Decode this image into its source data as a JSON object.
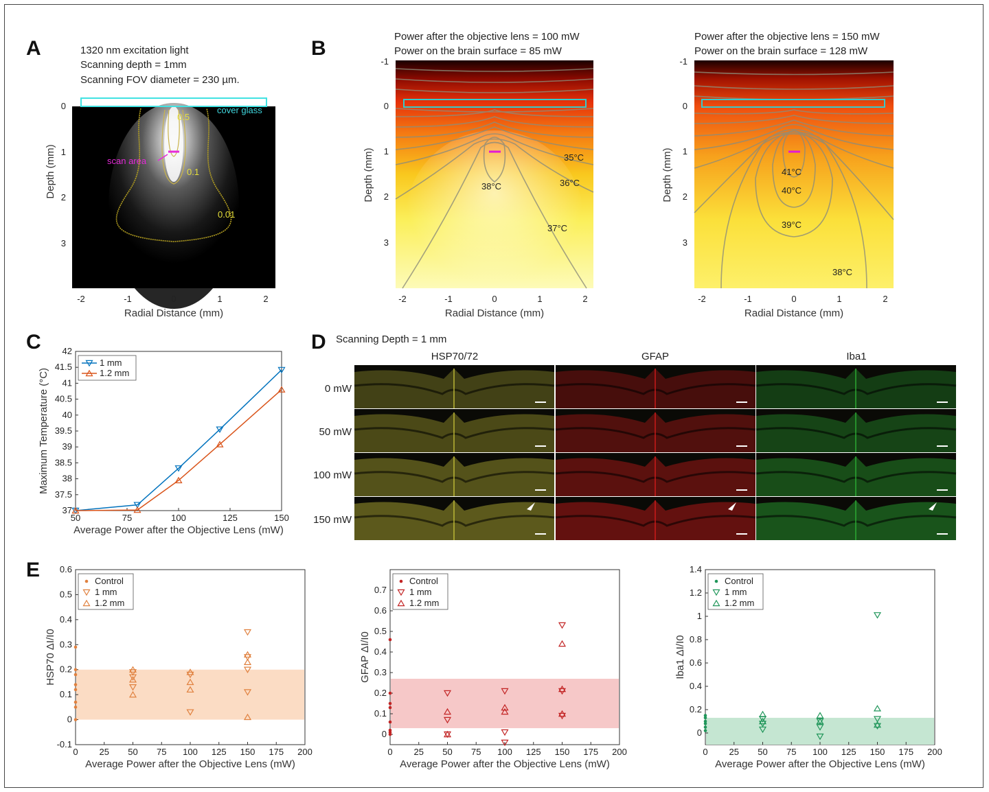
{
  "panel_labels": {
    "a": "A",
    "b": "B",
    "c": "C",
    "d": "D",
    "e": "E"
  },
  "panel_a": {
    "lines": [
      "1320 nm excitation light",
      "Scanning depth = 1mm",
      "Scanning FOV diameter = 230 µm."
    ],
    "cover_glass": "cover glass",
    "scan_area": "scan area",
    "contours": [
      "0.5",
      "0.1",
      "0.01"
    ],
    "xlabel": "Radial Distance (mm)",
    "ylabel": "Depth (mm)",
    "xticks": [
      "-2",
      "-1",
      "0",
      "1",
      "2"
    ],
    "yticks": [
      "0",
      "1",
      "2",
      "3"
    ]
  },
  "panel_b": {
    "left": {
      "line1": "Power after the objective lens = 100 mW",
      "line2": "Power on the brain surface = 85 mW",
      "labels": [
        "35°C",
        "36°C",
        "37°C",
        "38°C"
      ]
    },
    "right": {
      "line1": "Power after the objective lens = 150 mW",
      "line2": "Power on the brain surface = 128 mW",
      "labels": [
        "41°C",
        "40°C",
        "39°C",
        "38°C"
      ]
    },
    "xlabel": "Radial Distance (mm)",
    "ylabel": "Depth (mm)",
    "xticks": [
      "-2",
      "-1",
      "0",
      "1",
      "2"
    ],
    "yticks": [
      "-1",
      "0",
      "1",
      "2",
      "3"
    ]
  },
  "panel_d": {
    "title": "Scanning Depth = 1 mm",
    "columns": [
      "HSP70/72",
      "GFAP",
      "Iba1"
    ],
    "rows": [
      "0 mW",
      "50 mW",
      "100 mW",
      "150 mW"
    ],
    "colors": [
      "#c8c23a",
      "#d81c1c",
      "#2fb536"
    ]
  },
  "chart_data": [
    {
      "type": "line",
      "xlabel": "Average Power after the Objective Lens (mW)",
      "ylabel": "Maximum Temperature (°C)",
      "xlim": [
        50,
        150
      ],
      "ylim": [
        37,
        42
      ],
      "xticks": [
        50,
        75,
        100,
        125,
        150
      ],
      "yticks": [
        37,
        37.5,
        38,
        38.5,
        39,
        39.5,
        40,
        40.5,
        41,
        41.5,
        42
      ],
      "legend": "top-left",
      "series": [
        {
          "name": "1 mm",
          "color": "#0072bd",
          "marker": "triangle-down",
          "x": [
            50,
            80,
            100,
            120,
            150
          ],
          "y": [
            37.0,
            37.18,
            38.33,
            39.55,
            41.42
          ]
        },
        {
          "name": "1.2 mm",
          "color": "#d95319",
          "marker": "triangle-up",
          "x": [
            50,
            80,
            100,
            120,
            150
          ],
          "y": [
            37.0,
            37.02,
            37.95,
            39.08,
            40.8
          ]
        }
      ]
    },
    {
      "type": "scatter",
      "xlabel": "Average Power after the Objective Lens (mW)",
      "ylabel": "HSP70  ΔI/I0",
      "xlim": [
        0,
        200
      ],
      "ylim": [
        -0.1,
        0.6
      ],
      "xticks": [
        0,
        25,
        50,
        75,
        100,
        125,
        150,
        175,
        200
      ],
      "yticks": [
        -0.1,
        0,
        0.1,
        0.2,
        0.3,
        0.4,
        0.5,
        0.6
      ],
      "band": [
        0,
        0.2
      ],
      "color": "#e0813f",
      "band_color": "#fbdcc4",
      "legend": "top-left",
      "series": [
        {
          "name": "Control",
          "marker": "dot",
          "x": [
            0,
            0,
            0,
            0,
            0,
            0,
            0,
            0
          ],
          "y": [
            0.29,
            0.2,
            0.18,
            0.14,
            0.12,
            0.07,
            0.05,
            0.0
          ]
        },
        {
          "name": "1 mm",
          "marker": "triangle-down",
          "x": [
            50,
            50,
            50,
            100,
            100,
            150,
            150,
            150,
            150
          ],
          "y": [
            0.19,
            0.17,
            0.13,
            0.18,
            0.03,
            0.35,
            0.25,
            0.2,
            0.11
          ]
        },
        {
          "name": "1.2 mm",
          "marker": "triangle-up",
          "x": [
            50,
            50,
            50,
            100,
            100,
            100,
            150,
            150,
            150
          ],
          "y": [
            0.2,
            0.16,
            0.1,
            0.19,
            0.15,
            0.12,
            0.26,
            0.23,
            0.01
          ]
        }
      ]
    },
    {
      "type": "scatter",
      "xlabel": "Average Power after the Objective Lens (mW)",
      "ylabel": "GFAP  ΔI/I0",
      "xlim": [
        0,
        200
      ],
      "ylim": [
        -0.05,
        0.8
      ],
      "xticks": [
        0,
        25,
        50,
        75,
        100,
        125,
        150,
        175,
        200
      ],
      "yticks": [
        0,
        0.1,
        0.2,
        0.3,
        0.4,
        0.5,
        0.6,
        0.7
      ],
      "band": [
        0.03,
        0.27
      ],
      "color": "#c22424",
      "band_color": "#f6c8c8",
      "legend": "top-left",
      "series": [
        {
          "name": "Control",
          "marker": "dot",
          "x": [
            0,
            0,
            0,
            0,
            0,
            0,
            0,
            0
          ],
          "y": [
            0.46,
            0.2,
            0.15,
            0.13,
            0.06,
            0.02,
            0.01,
            0.0
          ]
        },
        {
          "name": "1 mm",
          "marker": "triangle-down",
          "x": [
            50,
            50,
            50,
            100,
            100,
            100,
            150,
            150,
            150
          ],
          "y": [
            0.2,
            0.07,
            0.0,
            0.21,
            0.01,
            -0.04,
            0.53,
            0.21,
            0.09
          ]
        },
        {
          "name": "1.2 mm",
          "marker": "triangle-up",
          "x": [
            50,
            50,
            100,
            100,
            150,
            150,
            150
          ],
          "y": [
            0.11,
            0.0,
            0.13,
            0.11,
            0.44,
            0.22,
            0.1
          ]
        }
      ]
    },
    {
      "type": "scatter",
      "xlabel": "Average Power after the Objective Lens (mW)",
      "ylabel": "Iba1  ΔI/I0",
      "xlim": [
        0,
        200
      ],
      "ylim": [
        -0.1,
        1.4
      ],
      "xticks": [
        0,
        25,
        50,
        75,
        100,
        125,
        150,
        175,
        200
      ],
      "yticks": [
        0,
        0.2,
        0.4,
        0.6,
        0.8,
        1,
        1.2,
        1.4
      ],
      "band": [
        -0.1,
        0.13
      ],
      "color": "#20965a",
      "band_color": "#c5e6d2",
      "legend": "top-left",
      "series": [
        {
          "name": "Control",
          "marker": "dot",
          "x": [
            0,
            0,
            0,
            0,
            0,
            0
          ],
          "y": [
            0.15,
            0.13,
            0.1,
            0.08,
            0.05,
            0.02
          ]
        },
        {
          "name": "1 mm",
          "marker": "triangle-down",
          "x": [
            50,
            50,
            50,
            100,
            100,
            100,
            150,
            150,
            150
          ],
          "y": [
            0.12,
            0.08,
            0.03,
            0.1,
            0.05,
            -0.03,
            1.01,
            0.12,
            0.06
          ]
        },
        {
          "name": "1.2 mm",
          "marker": "triangle-up",
          "x": [
            50,
            50,
            100,
            100,
            150,
            150
          ],
          "y": [
            0.16,
            0.1,
            0.15,
            0.1,
            0.21,
            0.07
          ]
        }
      ]
    }
  ]
}
